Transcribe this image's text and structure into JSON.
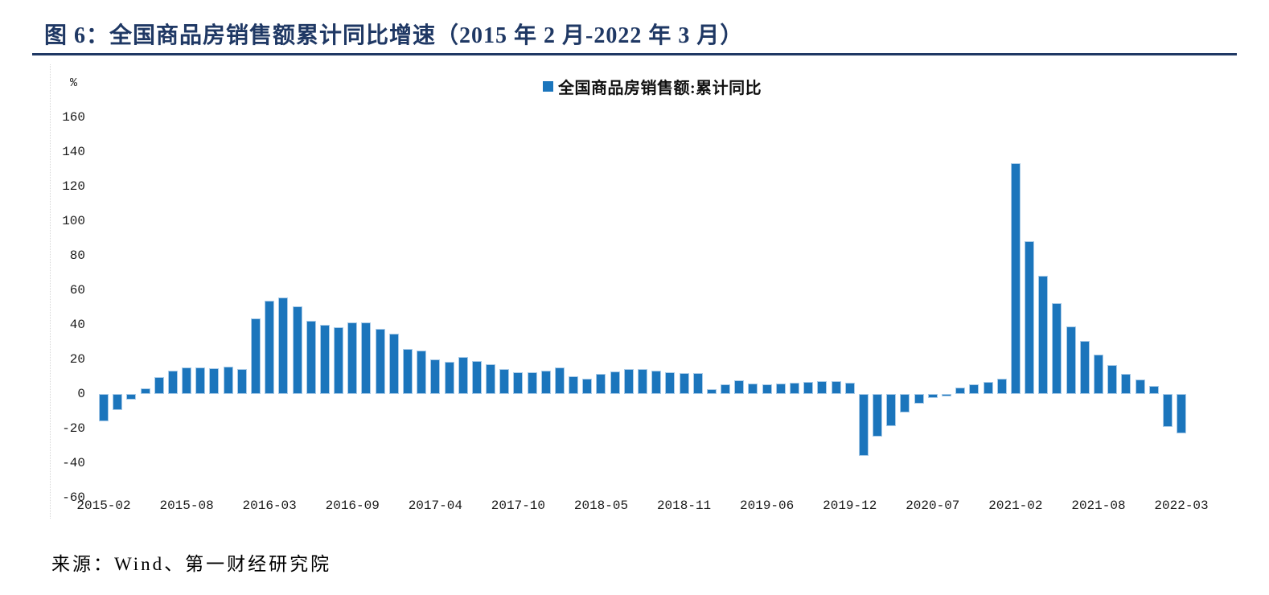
{
  "page": {
    "title": "图 6：全国商品房销售额累计同比增速（2015 年 2 月-2022 年 3 月）",
    "source": "来源：Wind、第一财经研究院"
  },
  "legend": {
    "label": "全国商品房销售额:累计同比",
    "marker_color": "#1B75BC"
  },
  "y_axis": {
    "unit": "%",
    "ticks": [
      160,
      140,
      120,
      100,
      80,
      60,
      40,
      20,
      0,
      -20,
      -40,
      -60
    ]
  },
  "chart_data": {
    "type": "bar",
    "title": "全国商品房销售额累计同比增速（2015年2月-2022年3月）",
    "series_name": "全国商品房销售额:累计同比",
    "unit": "%",
    "bar_color": "#1B75BC",
    "bar_border_color": "#A9CBE8",
    "ylim": [
      -60,
      160
    ],
    "grid": false,
    "legend_position": "top-center",
    "x_tick_every": 6,
    "x_tick_labels": [
      "2015-02",
      "2015-08",
      "2016-03",
      "2016-09",
      "2017-04",
      "2017-10",
      "2018-05",
      "2018-11",
      "2019-06",
      "2019-12",
      "2020-07",
      "2021-02",
      "2021-08",
      "2022-03"
    ],
    "x": [
      "2015-02",
      "2015-03",
      "2015-04",
      "2015-05",
      "2015-06",
      "2015-07",
      "2015-08",
      "2015-09",
      "2015-10",
      "2015-11",
      "2015-12",
      "2016-02",
      "2016-03",
      "2016-04",
      "2016-05",
      "2016-06",
      "2016-07",
      "2016-08",
      "2016-09",
      "2016-10",
      "2016-11",
      "2016-12",
      "2017-02",
      "2017-03",
      "2017-04",
      "2017-05",
      "2017-06",
      "2017-07",
      "2017-08",
      "2017-09",
      "2017-10",
      "2017-11",
      "2017-12",
      "2018-02",
      "2018-03",
      "2018-04",
      "2018-05",
      "2018-06",
      "2018-07",
      "2018-08",
      "2018-09",
      "2018-10",
      "2018-11",
      "2018-12",
      "2019-02",
      "2019-03",
      "2019-04",
      "2019-05",
      "2019-06",
      "2019-07",
      "2019-08",
      "2019-09",
      "2019-10",
      "2019-11",
      "2019-12",
      "2020-02",
      "2020-03",
      "2020-04",
      "2020-05",
      "2020-06",
      "2020-07",
      "2020-08",
      "2020-09",
      "2020-10",
      "2020-11",
      "2020-12",
      "2021-02",
      "2021-03",
      "2021-04",
      "2021-05",
      "2021-06",
      "2021-07",
      "2021-08",
      "2021-09",
      "2021-10",
      "2021-11",
      "2021-12",
      "2022-02",
      "2022-03"
    ],
    "values": [
      -15.8,
      -9.3,
      -3.1,
      3.1,
      10.0,
      13.4,
      15.3,
      15.3,
      14.9,
      15.6,
      14.4,
      43.6,
      54.1,
      55.9,
      50.7,
      42.1,
      39.8,
      38.7,
      41.3,
      41.2,
      37.5,
      34.8,
      26.0,
      25.1,
      20.1,
      18.6,
      21.5,
      18.9,
      17.2,
      14.6,
      12.6,
      12.7,
      13.7,
      15.3,
      10.4,
      9.0,
      11.8,
      13.2,
      14.4,
      14.5,
      13.3,
      12.5,
      12.1,
      12.2,
      2.8,
      5.6,
      8.1,
      6.1,
      5.6,
      6.2,
      6.7,
      7.1,
      7.3,
      7.3,
      6.5,
      -35.9,
      -24.7,
      -18.6,
      -10.6,
      -5.4,
      -2.1,
      -1.6,
      3.7,
      5.8,
      7.2,
      8.7,
      133.4,
      88.5,
      68.2,
      52.4,
      38.9,
      30.7,
      22.8,
      16.6,
      11.8,
      8.5,
      4.8,
      -19.3,
      -22.7
    ]
  }
}
